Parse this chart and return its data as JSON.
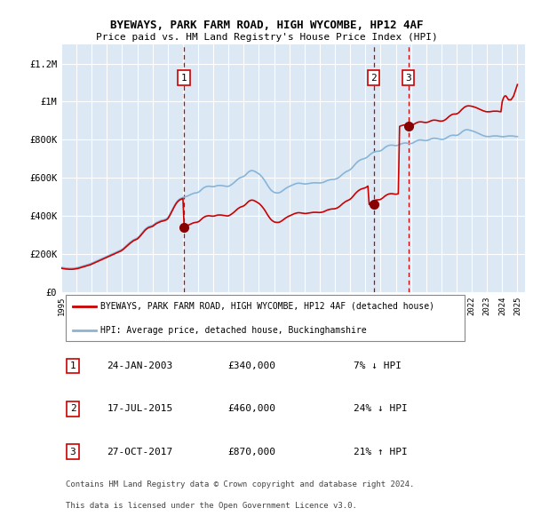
{
  "title1": "BYEWAYS, PARK FARM ROAD, HIGH WYCOMBE, HP12 4AF",
  "title2": "Price paid vs. HM Land Registry's House Price Index (HPI)",
  "ylim": [
    0,
    1300000
  ],
  "yticks": [
    0,
    200000,
    400000,
    600000,
    800000,
    1000000,
    1200000
  ],
  "ytick_labels": [
    "£0",
    "£200K",
    "£400K",
    "£600K",
    "£800K",
    "£1M",
    "£1.2M"
  ],
  "xlim_start": 1995.0,
  "xlim_end": 2025.5,
  "plot_bg_color": "#dce9f5",
  "grid_color": "#ffffff",
  "red_line_color": "#cc0000",
  "blue_line_color": "#88b4d8",
  "sale_marker_color": "#880000",
  "sale_dashed_color": "#cc0000",
  "legend_label_red": "BYEWAYS, PARK FARM ROAD, HIGH WYCOMBE, HP12 4AF (detached house)",
  "legend_label_blue": "HPI: Average price, detached house, Buckinghamshire",
  "sales": [
    {
      "num": 1,
      "year": 2003.07,
      "price": 340000,
      "date": "24-JAN-2003",
      "pct": "7%",
      "dir": "↓"
    },
    {
      "num": 2,
      "year": 2015.54,
      "price": 460000,
      "date": "17-JUL-2015",
      "pct": "24%",
      "dir": "↓"
    },
    {
      "num": 3,
      "year": 2017.82,
      "price": 870000,
      "date": "27-OCT-2017",
      "pct": "21%",
      "dir": "↑"
    }
  ],
  "footnote1": "Contains HM Land Registry data © Crown copyright and database right 2024.",
  "footnote2": "This data is licensed under the Open Government Licence v3.0.",
  "hpi_x": [
    1995.0,
    1995.083,
    1995.167,
    1995.25,
    1995.333,
    1995.417,
    1995.5,
    1995.583,
    1995.667,
    1995.75,
    1995.833,
    1995.917,
    1996.0,
    1996.083,
    1996.167,
    1996.25,
    1996.333,
    1996.417,
    1996.5,
    1996.583,
    1996.667,
    1996.75,
    1996.833,
    1996.917,
    1997.0,
    1997.083,
    1997.167,
    1997.25,
    1997.333,
    1997.417,
    1997.5,
    1997.583,
    1997.667,
    1997.75,
    1997.833,
    1997.917,
    1998.0,
    1998.083,
    1998.167,
    1998.25,
    1998.333,
    1998.417,
    1998.5,
    1998.583,
    1998.667,
    1998.75,
    1998.833,
    1998.917,
    1999.0,
    1999.083,
    1999.167,
    1999.25,
    1999.333,
    1999.417,
    1999.5,
    1999.583,
    1999.667,
    1999.75,
    1999.833,
    1999.917,
    2000.0,
    2000.083,
    2000.167,
    2000.25,
    2000.333,
    2000.417,
    2000.5,
    2000.583,
    2000.667,
    2000.75,
    2000.833,
    2000.917,
    2001.0,
    2001.083,
    2001.167,
    2001.25,
    2001.333,
    2001.417,
    2001.5,
    2001.583,
    2001.667,
    2001.75,
    2001.833,
    2001.917,
    2002.0,
    2002.083,
    2002.167,
    2002.25,
    2002.333,
    2002.417,
    2002.5,
    2002.583,
    2002.667,
    2002.75,
    2002.833,
    2002.917,
    2003.0,
    2003.083,
    2003.167,
    2003.25,
    2003.333,
    2003.417,
    2003.5,
    2003.583,
    2003.667,
    2003.75,
    2003.833,
    2003.917,
    2004.0,
    2004.083,
    2004.167,
    2004.25,
    2004.333,
    2004.417,
    2004.5,
    2004.583,
    2004.667,
    2004.75,
    2004.833,
    2004.917,
    2005.0,
    2005.083,
    2005.167,
    2005.25,
    2005.333,
    2005.417,
    2005.5,
    2005.583,
    2005.667,
    2005.75,
    2005.833,
    2005.917,
    2006.0,
    2006.083,
    2006.167,
    2006.25,
    2006.333,
    2006.417,
    2006.5,
    2006.583,
    2006.667,
    2006.75,
    2006.833,
    2006.917,
    2007.0,
    2007.083,
    2007.167,
    2007.25,
    2007.333,
    2007.417,
    2007.5,
    2007.583,
    2007.667,
    2007.75,
    2007.833,
    2007.917,
    2008.0,
    2008.083,
    2008.167,
    2008.25,
    2008.333,
    2008.417,
    2008.5,
    2008.583,
    2008.667,
    2008.75,
    2008.833,
    2008.917,
    2009.0,
    2009.083,
    2009.167,
    2009.25,
    2009.333,
    2009.417,
    2009.5,
    2009.583,
    2009.667,
    2009.75,
    2009.833,
    2009.917,
    2010.0,
    2010.083,
    2010.167,
    2010.25,
    2010.333,
    2010.417,
    2010.5,
    2010.583,
    2010.667,
    2010.75,
    2010.833,
    2010.917,
    2011.0,
    2011.083,
    2011.167,
    2011.25,
    2011.333,
    2011.417,
    2011.5,
    2011.583,
    2011.667,
    2011.75,
    2011.833,
    2011.917,
    2012.0,
    2012.083,
    2012.167,
    2012.25,
    2012.333,
    2012.417,
    2012.5,
    2012.583,
    2012.667,
    2012.75,
    2012.833,
    2012.917,
    2013.0,
    2013.083,
    2013.167,
    2013.25,
    2013.333,
    2013.417,
    2013.5,
    2013.583,
    2013.667,
    2013.75,
    2013.833,
    2013.917,
    2014.0,
    2014.083,
    2014.167,
    2014.25,
    2014.333,
    2014.417,
    2014.5,
    2014.583,
    2014.667,
    2014.75,
    2014.833,
    2014.917,
    2015.0,
    2015.083,
    2015.167,
    2015.25,
    2015.333,
    2015.417,
    2015.5,
    2015.583,
    2015.667,
    2015.75,
    2015.833,
    2015.917,
    2016.0,
    2016.083,
    2016.167,
    2016.25,
    2016.333,
    2016.417,
    2016.5,
    2016.583,
    2016.667,
    2016.75,
    2016.833,
    2016.917,
    2017.0,
    2017.083,
    2017.167,
    2017.25,
    2017.333,
    2017.417,
    2017.5,
    2017.583,
    2017.667,
    2017.75,
    2017.833,
    2017.917,
    2018.0,
    2018.083,
    2018.167,
    2018.25,
    2018.333,
    2018.417,
    2018.5,
    2018.583,
    2018.667,
    2018.75,
    2018.833,
    2018.917,
    2019.0,
    2019.083,
    2019.167,
    2019.25,
    2019.333,
    2019.417,
    2019.5,
    2019.583,
    2019.667,
    2019.75,
    2019.833,
    2019.917,
    2020.0,
    2020.083,
    2020.167,
    2020.25,
    2020.333,
    2020.417,
    2020.5,
    2020.583,
    2020.667,
    2020.75,
    2020.833,
    2020.917,
    2021.0,
    2021.083,
    2021.167,
    2021.25,
    2021.333,
    2021.417,
    2021.5,
    2021.583,
    2021.667,
    2021.75,
    2021.833,
    2021.917,
    2022.0,
    2022.083,
    2022.167,
    2022.25,
    2022.333,
    2022.417,
    2022.5,
    2022.583,
    2022.667,
    2022.75,
    2022.833,
    2022.917,
    2023.0,
    2023.083,
    2023.167,
    2023.25,
    2023.333,
    2023.417,
    2023.5,
    2023.583,
    2023.667,
    2023.75,
    2023.833,
    2023.917,
    2024.0,
    2024.083,
    2024.167,
    2024.25,
    2024.333,
    2024.417,
    2024.5,
    2024.583,
    2024.667,
    2024.75,
    2024.833,
    2024.917,
    2025.0
  ],
  "hpi_y": [
    130000,
    129000,
    128000,
    127000,
    126000,
    126000,
    125000,
    125000,
    125000,
    125000,
    126000,
    127000,
    128000,
    129000,
    131000,
    133000,
    135000,
    137000,
    139000,
    141000,
    143000,
    145000,
    147000,
    149000,
    152000,
    155000,
    158000,
    161000,
    164000,
    167000,
    170000,
    173000,
    176000,
    179000,
    182000,
    185000,
    188000,
    191000,
    194000,
    197000,
    200000,
    203000,
    206000,
    209000,
    212000,
    215000,
    218000,
    221000,
    225000,
    230000,
    236000,
    242000,
    248000,
    254000,
    260000,
    265000,
    270000,
    275000,
    278000,
    281000,
    284000,
    290000,
    297000,
    305000,
    313000,
    321000,
    329000,
    335000,
    340000,
    344000,
    346000,
    348000,
    350000,
    355000,
    360000,
    365000,
    368000,
    371000,
    374000,
    377000,
    378000,
    380000,
    382000,
    385000,
    390000,
    400000,
    412000,
    425000,
    438000,
    451000,
    463000,
    473000,
    481000,
    487000,
    491000,
    494000,
    497000,
    499000,
    501000,
    503000,
    506000,
    509000,
    512000,
    515000,
    518000,
    520000,
    521000,
    522000,
    524000,
    528000,
    534000,
    540000,
    546000,
    550000,
    553000,
    555000,
    556000,
    556000,
    555000,
    554000,
    554000,
    555000,
    557000,
    559000,
    560000,
    560000,
    560000,
    559000,
    558000,
    557000,
    556000,
    555000,
    556000,
    559000,
    563000,
    568000,
    573000,
    579000,
    585000,
    591000,
    596000,
    600000,
    603000,
    605000,
    608000,
    613000,
    619000,
    626000,
    632000,
    636000,
    638000,
    638000,
    636000,
    633000,
    629000,
    625000,
    621000,
    615000,
    608000,
    600000,
    591000,
    581000,
    570000,
    559000,
    549000,
    540000,
    533000,
    528000,
    524000,
    522000,
    521000,
    521000,
    522000,
    525000,
    529000,
    534000,
    539000,
    544000,
    548000,
    552000,
    555000,
    558000,
    561000,
    564000,
    567000,
    569000,
    571000,
    572000,
    572000,
    571000,
    570000,
    569000,
    568000,
    568000,
    569000,
    570000,
    571000,
    572000,
    573000,
    574000,
    574000,
    574000,
    574000,
    573000,
    573000,
    574000,
    575000,
    577000,
    580000,
    583000,
    586000,
    588000,
    590000,
    591000,
    592000,
    592000,
    593000,
    595000,
    598000,
    602000,
    607000,
    613000,
    619000,
    624000,
    629000,
    633000,
    636000,
    639000,
    643000,
    649000,
    656000,
    664000,
    672000,
    679000,
    685000,
    690000,
    694000,
    697000,
    699000,
    701000,
    703000,
    707000,
    712000,
    718000,
    724000,
    729000,
    733000,
    736000,
    738000,
    739000,
    740000,
    740000,
    742000,
    746000,
    751000,
    757000,
    762000,
    766000,
    769000,
    771000,
    772000,
    772000,
    771000,
    770000,
    769000,
    770000,
    772000,
    775000,
    778000,
    780000,
    782000,
    783000,
    783000,
    782000,
    781000,
    780000,
    780000,
    782000,
    785000,
    789000,
    793000,
    796000,
    798000,
    799000,
    799000,
    798000,
    797000,
    796000,
    796000,
    797000,
    799000,
    802000,
    805000,
    807000,
    808000,
    808000,
    807000,
    806000,
    804000,
    803000,
    802000,
    802000,
    803000,
    806000,
    810000,
    814000,
    818000,
    821000,
    823000,
    824000,
    824000,
    823000,
    823000,
    825000,
    829000,
    834000,
    840000,
    845000,
    849000,
    852000,
    853000,
    853000,
    851000,
    849000,
    847000,
    845000,
    843000,
    840000,
    837000,
    834000,
    831000,
    828000,
    825000,
    822000,
    820000,
    818000,
    817000,
    817000,
    817000,
    818000,
    819000,
    820000,
    820000,
    820000,
    820000,
    819000,
    818000,
    817000,
    816000,
    816000,
    817000,
    818000,
    819000,
    820000,
    820000,
    820000,
    820000,
    819000,
    818000,
    817000,
    817000
  ],
  "red_y": [
    125000,
    124000,
    123000,
    122000,
    121000,
    121000,
    120000,
    120000,
    120000,
    120000,
    121000,
    122000,
    123000,
    124000,
    126000,
    128000,
    130000,
    132000,
    134000,
    136000,
    138000,
    140000,
    142000,
    144000,
    147000,
    150000,
    153000,
    156000,
    159000,
    162000,
    165000,
    168000,
    171000,
    174000,
    177000,
    180000,
    183000,
    186000,
    189000,
    192000,
    195000,
    198000,
    201000,
    204000,
    207000,
    210000,
    213000,
    216000,
    220000,
    225000,
    231000,
    237000,
    243000,
    249000,
    255000,
    260000,
    265000,
    270000,
    273000,
    276000,
    279000,
    285000,
    292000,
    300000,
    308000,
    316000,
    324000,
    330000,
    335000,
    339000,
    341000,
    343000,
    345000,
    350000,
    355000,
    360000,
    363000,
    366000,
    369000,
    372000,
    373000,
    375000,
    377000,
    380000,
    385000,
    395000,
    407000,
    420000,
    433000,
    446000,
    458000,
    468000,
    476000,
    482000,
    486000,
    489000,
    492000,
    340000,
    346000,
    348000,
    351000,
    354000,
    357000,
    360000,
    363000,
    365000,
    366000,
    367000,
    369000,
    373000,
    379000,
    385000,
    391000,
    395000,
    398000,
    400000,
    401000,
    401000,
    400000,
    399000,
    399000,
    400000,
    402000,
    404000,
    405000,
    405000,
    405000,
    404000,
    403000,
    402000,
    401000,
    400000,
    401000,
    404000,
    408000,
    413000,
    418000,
    424000,
    430000,
    436000,
    441000,
    445000,
    448000,
    450000,
    453000,
    458000,
    464000,
    471000,
    477000,
    481000,
    483000,
    483000,
    481000,
    478000,
    474000,
    470000,
    466000,
    460000,
    453000,
    445000,
    436000,
    426000,
    415000,
    404000,
    394000,
    385000,
    378000,
    373000,
    369000,
    367000,
    366000,
    366000,
    367000,
    370000,
    374000,
    379000,
    384000,
    389000,
    393000,
    397000,
    400000,
    403000,
    406000,
    409000,
    412000,
    414000,
    416000,
    417000,
    417000,
    416000,
    415000,
    414000,
    413000,
    413000,
    414000,
    415000,
    416000,
    417000,
    418000,
    419000,
    419000,
    419000,
    419000,
    418000,
    418000,
    419000,
    420000,
    422000,
    425000,
    428000,
    431000,
    433000,
    435000,
    436000,
    437000,
    437000,
    438000,
    440000,
    443000,
    447000,
    452000,
    458000,
    464000,
    469000,
    474000,
    478000,
    481000,
    484000,
    488000,
    494000,
    501000,
    509000,
    517000,
    524000,
    530000,
    535000,
    539000,
    542000,
    544000,
    546000,
    548000,
    552000,
    557000,
    460000,
    469000,
    474000,
    478000,
    481000,
    483000,
    484000,
    485000,
    485000,
    487000,
    491000,
    496000,
    502000,
    507000,
    511000,
    514000,
    516000,
    517000,
    517000,
    516000,
    515000,
    514000,
    515000,
    517000,
    870000,
    873000,
    875000,
    877000,
    878000,
    878000,
    877000,
    876000,
    875000,
    875000,
    877000,
    880000,
    884000,
    888000,
    891000,
    893000,
    894000,
    894000,
    893000,
    892000,
    891000,
    891000,
    892000,
    894000,
    897000,
    900000,
    902000,
    903000,
    903000,
    902000,
    901000,
    899000,
    898000,
    898000,
    899000,
    901000,
    905000,
    910000,
    916000,
    922000,
    927000,
    931000,
    934000,
    935000,
    935000,
    936000,
    939000,
    944000,
    951000,
    958000,
    964000,
    970000,
    974000,
    977000,
    978000,
    978000,
    977000,
    976000,
    974000,
    972000,
    970000,
    967000,
    964000,
    961000,
    958000,
    955000,
    952000,
    950000,
    948000,
    947000,
    947000,
    947000,
    948000,
    949000,
    950000,
    950000,
    950000,
    950000,
    949000,
    948000,
    947000,
    1000000,
    1020000,
    1030000,
    1030000,
    1020000,
    1010000,
    1010000,
    1010000,
    1020000,
    1030000,
    1050000,
    1070000,
    1090000
  ],
  "xtick_years": [
    1995,
    1996,
    1997,
    1998,
    1999,
    2000,
    2001,
    2002,
    2003,
    2004,
    2005,
    2006,
    2007,
    2008,
    2009,
    2010,
    2011,
    2012,
    2013,
    2014,
    2015,
    2016,
    2017,
    2018,
    2019,
    2020,
    2021,
    2022,
    2023,
    2024,
    2025
  ]
}
